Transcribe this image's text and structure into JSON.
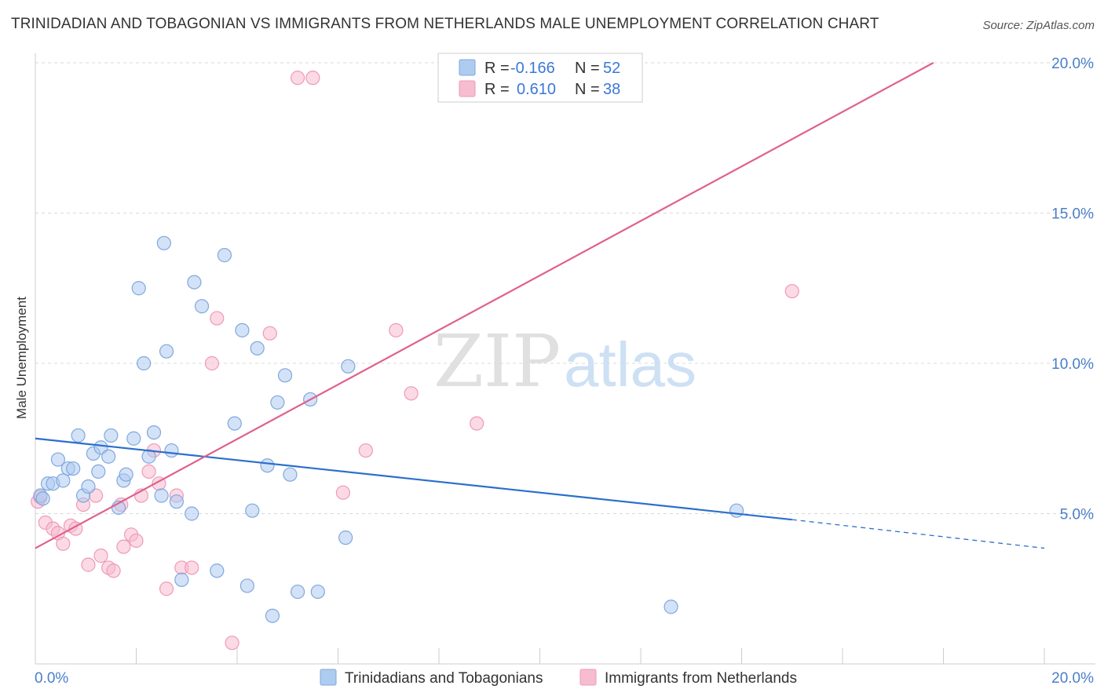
{
  "title": "TRINIDADIAN AND TOBAGONIAN VS IMMIGRANTS FROM NETHERLANDS MALE UNEMPLOYMENT CORRELATION CHART",
  "source": "Source: ZipAtlas.com",
  "watermark": {
    "zip": "ZIP",
    "atlas": "atlas"
  },
  "colors": {
    "blue_fill": "#aecbf0",
    "blue_stroke": "#7fa8de",
    "blue_line": "#2b6fcc",
    "pink_fill": "#f7bcd0",
    "pink_stroke": "#ee9ab7",
    "pink_line": "#e0608d",
    "grid": "#d9d9d9",
    "tick_text": "#4a7fc8"
  },
  "chart_data": {
    "type": "scatter",
    "xlabel": "",
    "ylabel": "Male Unemployment",
    "xlim": [
      0,
      20
    ],
    "ylim": [
      0,
      20
    ],
    "x_tick_labels": {
      "left": "0.0%",
      "right": "20.0%"
    },
    "y_ticks": [
      {
        "value": 5,
        "label": "5.0%"
      },
      {
        "value": 10,
        "label": "10.0%"
      },
      {
        "value": 15,
        "label": "15.0%"
      },
      {
        "value": 20,
        "label": "20.0%"
      }
    ],
    "legend": {
      "entries": [
        {
          "r_label": "R = ",
          "r_value": "-0.166",
          "n_label": "N = ",
          "n_value": "52"
        },
        {
          "r_label": "R = ",
          "r_value": "0.610",
          "n_label": "N = ",
          "n_value": "38"
        }
      ]
    },
    "series": [
      {
        "name": "Trinidadians and Tobagonians",
        "color": "#aecbf0",
        "trend": {
          "x0": 0,
          "y0": 7.5,
          "x1": 15.0,
          "y1": 4.8,
          "dash_to_x": 20.0,
          "dash_to_y": 3.85
        },
        "points": [
          [
            0.1,
            5.6
          ],
          [
            0.15,
            5.5
          ],
          [
            0.25,
            6.0
          ],
          [
            0.35,
            6.0
          ],
          [
            0.45,
            6.8
          ],
          [
            0.55,
            6.1
          ],
          [
            0.65,
            6.5
          ],
          [
            0.75,
            6.5
          ],
          [
            0.85,
            7.6
          ],
          [
            0.95,
            5.6
          ],
          [
            1.05,
            5.9
          ],
          [
            1.15,
            7.0
          ],
          [
            1.25,
            6.4
          ],
          [
            1.3,
            7.2
          ],
          [
            1.45,
            6.9
          ],
          [
            1.5,
            7.6
          ],
          [
            1.65,
            5.2
          ],
          [
            1.75,
            6.1
          ],
          [
            1.8,
            6.3
          ],
          [
            1.95,
            7.5
          ],
          [
            2.05,
            12.5
          ],
          [
            2.15,
            10.0
          ],
          [
            2.25,
            6.9
          ],
          [
            2.35,
            7.7
          ],
          [
            2.5,
            5.6
          ],
          [
            2.55,
            14.0
          ],
          [
            2.6,
            10.4
          ],
          [
            2.7,
            7.1
          ],
          [
            2.8,
            5.4
          ],
          [
            2.9,
            2.8
          ],
          [
            3.1,
            5.0
          ],
          [
            3.15,
            12.7
          ],
          [
            3.3,
            11.9
          ],
          [
            3.6,
            3.1
          ],
          [
            3.75,
            13.6
          ],
          [
            3.95,
            8.0
          ],
          [
            4.1,
            11.1
          ],
          [
            4.2,
            2.6
          ],
          [
            4.3,
            5.1
          ],
          [
            4.4,
            10.5
          ],
          [
            4.6,
            6.6
          ],
          [
            4.7,
            1.6
          ],
          [
            4.8,
            8.7
          ],
          [
            4.95,
            9.6
          ],
          [
            5.05,
            6.3
          ],
          [
            5.2,
            2.4
          ],
          [
            5.45,
            8.8
          ],
          [
            5.6,
            2.4
          ],
          [
            6.15,
            4.2
          ],
          [
            6.2,
            9.9
          ],
          [
            12.6,
            1.9
          ],
          [
            13.9,
            5.1
          ]
        ]
      },
      {
        "name": "Immigrants from Netherlands",
        "color": "#f7bcd0",
        "trend": {
          "x0": 0,
          "y0": 3.85,
          "x1": 17.8,
          "y1": 20.0
        },
        "points": [
          [
            0.05,
            5.4
          ],
          [
            0.1,
            5.55
          ],
          [
            0.2,
            4.7
          ],
          [
            0.35,
            4.5
          ],
          [
            0.45,
            4.35
          ],
          [
            0.55,
            4.0
          ],
          [
            0.7,
            4.6
          ],
          [
            0.8,
            4.5
          ],
          [
            0.95,
            5.3
          ],
          [
            1.05,
            3.3
          ],
          [
            1.2,
            5.6
          ],
          [
            1.3,
            3.6
          ],
          [
            1.45,
            3.2
          ],
          [
            1.55,
            3.1
          ],
          [
            1.7,
            5.3
          ],
          [
            1.75,
            3.9
          ],
          [
            1.9,
            4.3
          ],
          [
            2.0,
            4.1
          ],
          [
            2.1,
            5.6
          ],
          [
            2.25,
            6.4
          ],
          [
            2.35,
            7.1
          ],
          [
            2.45,
            6.0
          ],
          [
            2.6,
            2.5
          ],
          [
            2.8,
            5.6
          ],
          [
            2.9,
            3.2
          ],
          [
            3.1,
            3.2
          ],
          [
            3.5,
            10.0
          ],
          [
            3.6,
            11.5
          ],
          [
            3.9,
            0.7
          ],
          [
            4.65,
            11.0
          ],
          [
            5.2,
            19.5
          ],
          [
            5.5,
            19.5
          ],
          [
            6.1,
            5.7
          ],
          [
            6.55,
            7.1
          ],
          [
            7.15,
            11.1
          ],
          [
            7.45,
            9.0
          ],
          [
            8.75,
            8.0
          ],
          [
            15.0,
            12.4
          ]
        ]
      }
    ]
  },
  "bottom_legend": [
    {
      "label": "Trinidadians and Tobagonians"
    },
    {
      "label": "Immigrants from Netherlands"
    }
  ]
}
